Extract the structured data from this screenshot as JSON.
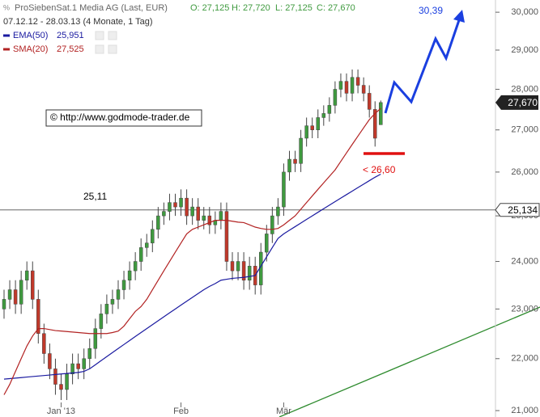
{
  "chart_data": {
    "type": "candlestick",
    "title": "ProSiebenSat.1 Media AG (Last, EUR)",
    "ohlc_labels": [
      "O: 27,125",
      "H: 27,720",
      "L: 27,125",
      "C: 27,670"
    ],
    "subtitle": "07.12.12 - 28.03.13 (4 Monate, 1 Tag)",
    "watermark": "© http://www.godmode-trader.de",
    "log": true,
    "ylim": [
      20.88,
      30.33
    ],
    "yticks": [
      {
        "value": 21,
        "label": "21,000"
      },
      {
        "value": 22,
        "label": "22,000"
      },
      {
        "value": 23,
        "label": "23,000"
      },
      {
        "value": 24,
        "label": "24,000"
      },
      {
        "value": 25,
        "label": "25,000"
      },
      {
        "value": 26,
        "label": "26,000"
      },
      {
        "value": 27,
        "label": "27,000"
      },
      {
        "value": 28,
        "label": "28,000"
      },
      {
        "value": 29,
        "label": "29,000"
      },
      {
        "value": 30,
        "label": "30,000"
      }
    ],
    "categories": [
      null,
      null,
      null,
      null,
      null,
      null,
      null,
      null,
      null,
      null,
      "Jan '13",
      null,
      null,
      null,
      null,
      null,
      null,
      null,
      null,
      null,
      null,
      null,
      null,
      null,
      null,
      null,
      null,
      null,
      null,
      null,
      null,
      "Feb",
      null,
      null,
      null,
      null,
      null,
      null,
      null,
      null,
      null,
      null,
      null,
      null,
      null,
      null,
      null,
      null,
      null,
      "Mär",
      null,
      null,
      null,
      null,
      null,
      null,
      null,
      null,
      null,
      null,
      null,
      null,
      null,
      null,
      null,
      null,
      null
    ],
    "up_color": "#3f9a3f",
    "down_color": "#c0392b",
    "open": [
      23.0,
      23.2,
      23.4,
      23.1,
      23.6,
      23.8,
      23.2,
      22.5,
      22.1,
      21.8,
      21.5,
      21.4,
      21.7,
      21.9,
      21.8,
      22.0,
      22.2,
      22.6,
      22.9,
      23.1,
      23.2,
      23.4,
      23.6,
      23.8,
      24.0,
      24.3,
      24.4,
      24.7,
      25.0,
      25.1,
      25.3,
      25.2,
      25.4,
      25.0,
      25.2,
      24.9,
      25.0,
      24.8,
      24.9,
      25.1,
      24.0,
      23.8,
      24.0,
      23.6,
      23.9,
      23.5,
      24.2,
      24.6,
      25.0,
      25.2,
      26.0,
      26.3,
      26.2,
      26.8,
      27.1,
      27.0,
      27.3,
      27.4,
      27.6,
      28.0,
      28.2,
      27.9,
      28.3,
      28.1,
      27.9,
      27.5,
      27.125
    ],
    "high": [
      23.4,
      23.6,
      23.6,
      23.8,
      24.0,
      24.0,
      23.4,
      22.7,
      22.3,
      22.0,
      21.7,
      21.9,
      22.1,
      22.1,
      22.2,
      22.4,
      22.8,
      23.1,
      23.3,
      23.4,
      23.6,
      23.8,
      24.0,
      24.2,
      24.5,
      24.6,
      24.9,
      25.2,
      25.3,
      25.5,
      25.5,
      25.6,
      25.6,
      25.4,
      25.4,
      25.2,
      25.2,
      25.1,
      25.3,
      25.3,
      24.2,
      24.2,
      24.2,
      24.1,
      24.1,
      24.4,
      24.8,
      25.2,
      25.4,
      26.2,
      26.5,
      26.5,
      27.0,
      27.3,
      27.3,
      27.5,
      27.6,
      27.8,
      28.2,
      28.4,
      28.4,
      28.5,
      28.5,
      28.3,
      28.1,
      27.7,
      27.72
    ],
    "low": [
      22.8,
      23.0,
      22.9,
      22.9,
      23.4,
      23.0,
      22.3,
      21.9,
      21.6,
      21.3,
      21.2,
      21.2,
      21.5,
      21.6,
      21.6,
      21.8,
      22.0,
      22.4,
      22.7,
      22.9,
      23.0,
      23.2,
      23.4,
      23.6,
      23.8,
      24.1,
      24.2,
      24.5,
      24.8,
      24.9,
      25.0,
      25.0,
      24.8,
      24.8,
      24.7,
      24.7,
      24.6,
      24.6,
      24.7,
      23.8,
      23.6,
      23.6,
      23.4,
      23.4,
      23.3,
      23.3,
      24.0,
      24.4,
      24.8,
      25.0,
      25.8,
      26.0,
      26.0,
      26.6,
      26.8,
      26.8,
      27.1,
      27.2,
      27.4,
      27.8,
      27.7,
      27.7,
      27.9,
      27.7,
      27.3,
      26.6,
      27.125
    ],
    "close": [
      23.2,
      23.4,
      23.1,
      23.6,
      23.8,
      23.2,
      22.5,
      22.1,
      21.8,
      21.5,
      21.4,
      21.7,
      21.9,
      21.8,
      22.0,
      22.2,
      22.6,
      22.9,
      23.1,
      23.2,
      23.4,
      23.6,
      23.8,
      24.0,
      24.3,
      24.4,
      24.7,
      25.0,
      25.1,
      25.3,
      25.2,
      25.4,
      25.0,
      25.2,
      24.9,
      25.0,
      24.8,
      24.9,
      25.1,
      24.0,
      23.8,
      24.0,
      23.6,
      23.9,
      23.5,
      24.2,
      24.6,
      25.0,
      25.2,
      26.0,
      26.3,
      26.2,
      26.8,
      27.1,
      27.0,
      27.3,
      27.4,
      27.6,
      28.0,
      28.2,
      27.9,
      28.3,
      28.1,
      27.9,
      27.5,
      26.8,
      27.67
    ],
    "last_label": "27,670",
    "series": [
      {
        "name": "EMA(50)",
        "label": "25,951",
        "color": "#1a1aa0",
        "values": [
          21.6,
          21.61,
          21.62,
          21.63,
          21.64,
          21.65,
          21.66,
          21.67,
          21.68,
          21.69,
          21.7,
          21.71,
          21.72,
          21.73,
          21.75,
          21.8,
          21.88,
          21.96,
          22.04,
          22.12,
          22.2,
          22.28,
          22.36,
          22.44,
          22.52,
          22.6,
          22.68,
          22.76,
          22.84,
          22.92,
          23.0,
          23.08,
          23.16,
          23.24,
          23.32,
          23.4,
          23.47,
          23.53,
          23.6,
          23.62,
          23.64,
          23.65,
          23.66,
          23.68,
          23.7,
          23.9,
          24.1,
          24.3,
          24.5,
          24.6,
          24.68,
          24.76,
          24.84,
          24.92,
          25.0,
          25.08,
          25.16,
          25.24,
          25.32,
          25.4,
          25.48,
          25.56,
          25.64,
          25.72,
          25.8,
          25.88,
          25.951
        ]
      },
      {
        "name": "SMA(20)",
        "label": "27,525",
        "color": "#b22222",
        "values": [
          21.3,
          21.5,
          21.75,
          22.0,
          22.25,
          22.45,
          22.6,
          22.6,
          22.58,
          22.56,
          22.55,
          22.54,
          22.53,
          22.52,
          22.51,
          22.5,
          22.5,
          22.5,
          22.5,
          22.52,
          22.55,
          22.65,
          22.8,
          22.95,
          23.05,
          23.2,
          23.4,
          23.6,
          23.8,
          24.0,
          24.2,
          24.4,
          24.6,
          24.7,
          24.75,
          24.8,
          24.85,
          24.9,
          24.9,
          24.9,
          24.88,
          24.86,
          24.85,
          24.8,
          24.75,
          24.72,
          24.7,
          24.7,
          24.72,
          24.8,
          24.9,
          25.0,
          25.15,
          25.3,
          25.45,
          25.6,
          25.75,
          25.9,
          26.05,
          26.25,
          26.45,
          26.65,
          26.85,
          27.05,
          27.25,
          27.4,
          27.525
        ]
      }
    ],
    "level": {
      "value": 25.134,
      "label": "25,134",
      "note": "25,11"
    },
    "annotations": [
      "< 26,60",
      "30,39"
    ]
  }
}
